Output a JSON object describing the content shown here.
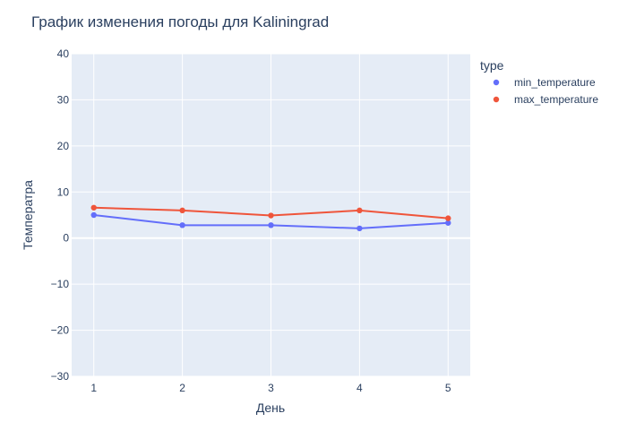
{
  "chart_data": {
    "type": "line",
    "title": "График изменения погоды для Kaliningrad",
    "xlabel": "День",
    "ylabel": "Температра",
    "x": [
      1,
      2,
      3,
      4,
      5
    ],
    "xlim": [
      0.75,
      5.25
    ],
    "ylim": [
      -30,
      40
    ],
    "x_ticks": [
      1,
      2,
      3,
      4,
      5
    ],
    "y_ticks": [
      -30,
      -20,
      -10,
      0,
      10,
      20,
      30,
      40
    ],
    "y_tick_labels": [
      "−30",
      "−20",
      "−10",
      "0",
      "10",
      "20",
      "30",
      "40"
    ],
    "grid": true,
    "legend": {
      "title": "type",
      "position": "top-right"
    },
    "series": [
      {
        "name": "min_temperature",
        "color": "#636efa",
        "values": [
          5.0,
          2.8,
          2.8,
          2.1,
          3.3
        ]
      },
      {
        "name": "max_temperature",
        "color": "#ef553b",
        "values": [
          6.6,
          6.0,
          4.9,
          6.0,
          4.3
        ]
      }
    ]
  },
  "colors": {
    "plot_background": "#e5ecf6",
    "grid": "#ffffff",
    "text": "#2a3f5f"
  }
}
